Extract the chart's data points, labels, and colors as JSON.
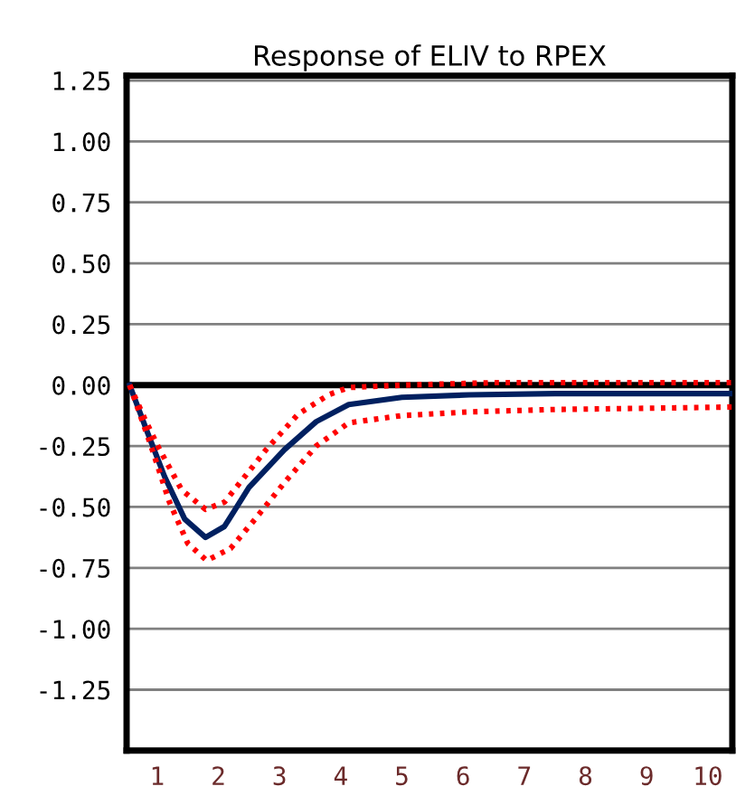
{
  "chart_data": {
    "type": "line",
    "title": "Response of ELIV to RPEX",
    "series": [
      {
        "color": "#002060",
        "line_style": "solid",
        "x": [
          0.55,
          0.85,
          1.12,
          1.45,
          1.79,
          2.1,
          2.5,
          3.08,
          3.6,
          4.13,
          5,
          6.1,
          7.5,
          9,
          10.4
        ],
        "values": [
          0,
          -0.2,
          -0.375,
          -0.55,
          -0.625,
          -0.58,
          -0.42,
          -0.265,
          -0.15,
          -0.08,
          -0.05,
          -0.04,
          -0.035,
          -0.035,
          -0.035
        ]
      },
      {
        "color": "#ff0000",
        "line_style": "dotted",
        "x": [
          0.55,
          0.8,
          1.03,
          1.4,
          1.79,
          2.1,
          2.45,
          2.78,
          3.3,
          3.8,
          4.13,
          5,
          6.5,
          8,
          10.4
        ],
        "values": [
          0,
          -0.14,
          -0.26,
          -0.43,
          -0.51,
          -0.48,
          -0.37,
          -0.265,
          -0.12,
          -0.04,
          -0.01,
          0,
          0.01,
          0.01,
          0.01
        ]
      },
      {
        "color": "#ff0000",
        "line_style": "dotted",
        "x": [
          0.55,
          0.9,
          1.2,
          1.5,
          1.81,
          2.2,
          2.6,
          3.08,
          3.6,
          4.13,
          5,
          6.1,
          7.5,
          9,
          10.4
        ],
        "values": [
          0,
          -0.25,
          -0.48,
          -0.65,
          -0.72,
          -0.67,
          -0.55,
          -0.4,
          -0.25,
          -0.155,
          -0.125,
          -0.11,
          -0.1,
          -0.095,
          -0.09
        ]
      }
    ],
    "xlim": [
      0.5,
      10.4
    ],
    "xticks": [
      1,
      2,
      3,
      4,
      5,
      6,
      7,
      8,
      9,
      10
    ],
    "ylim": [
      -1.5,
      1.27
    ],
    "yticks": [
      {
        "value": 1.25,
        "label": "1.25"
      },
      {
        "value": 1.0,
        "label": "1.00"
      },
      {
        "value": 0.75,
        "label": "0.75"
      },
      {
        "value": 0.5,
        "label": "0.50"
      },
      {
        "value": 0.25,
        "label": "0.25"
      },
      {
        "value": 0,
        "label": "0.00"
      },
      {
        "value": -0.25,
        "label": "-0.25"
      },
      {
        "value": -0.5,
        "label": "-0.50"
      },
      {
        "value": -0.75,
        "label": "-0.75"
      },
      {
        "value": -1.0,
        "label": "-1.00"
      },
      {
        "value": -1.25,
        "label": "-1.25"
      }
    ],
    "grid": "y",
    "marker": "none",
    "legend": false,
    "ref_lines": [
      {
        "axis": "y",
        "value": 0,
        "color": "#000000",
        "line_style": "solid"
      }
    ]
  }
}
